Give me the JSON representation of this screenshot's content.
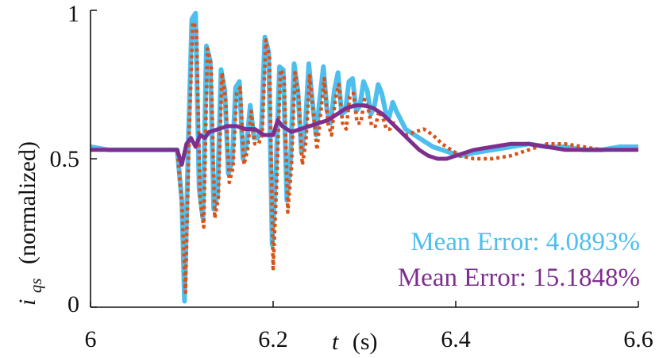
{
  "chart_data": {
    "type": "line",
    "title": "",
    "xlabel_var": "t",
    "xlabel_unit": "(s)",
    "ylabel_var": "i",
    "ylabel_sub": "qs",
    "ylabel_rest": "(normalized)",
    "xlim": [
      6.0,
      6.6
    ],
    "ylim": [
      0,
      1
    ],
    "x_ticks": [
      6.0,
      6.2,
      6.4,
      6.6
    ],
    "x_tick_labels": [
      "6",
      "6.2",
      "6.4",
      "6.6"
    ],
    "y_ticks": [
      0,
      0.5,
      1
    ],
    "y_tick_labels": [
      "0",
      "0.5",
      "1"
    ],
    "grid": false,
    "annotations": [
      {
        "text": "Mean Error:  4.0893%",
        "color": "#4dbeee"
      },
      {
        "text": "Mean Error:  15.1848%",
        "color": "#7e2f8e"
      }
    ],
    "series": [
      {
        "color": "#4dbeee",
        "style": "solid",
        "x": [
          6.0,
          6.02,
          6.04,
          6.06,
          6.08,
          6.095,
          6.1,
          6.103,
          6.107,
          6.111,
          6.115,
          6.119,
          6.123,
          6.127,
          6.131,
          6.135,
          6.139,
          6.143,
          6.147,
          6.151,
          6.155,
          6.159,
          6.163,
          6.167,
          6.171,
          6.175,
          6.179,
          6.183,
          6.187,
          6.191,
          6.195,
          6.199,
          6.203,
          6.207,
          6.211,
          6.215,
          6.219,
          6.223,
          6.227,
          6.231,
          6.235,
          6.239,
          6.243,
          6.247,
          6.251,
          6.255,
          6.259,
          6.263,
          6.267,
          6.271,
          6.275,
          6.279,
          6.283,
          6.287,
          6.291,
          6.295,
          6.299,
          6.303,
          6.307,
          6.311,
          6.315,
          6.319,
          6.323,
          6.327,
          6.331,
          6.335,
          6.345,
          6.355,
          6.365,
          6.375,
          6.385,
          6.395,
          6.405,
          6.42,
          6.44,
          6.46,
          6.48,
          6.5,
          6.52,
          6.54,
          6.56,
          6.58,
          6.6
        ],
        "y": [
          0.54,
          0.53,
          0.53,
          0.53,
          0.53,
          0.53,
          0.36,
          0.02,
          0.55,
          0.97,
          0.99,
          0.4,
          0.3,
          0.88,
          0.83,
          0.33,
          0.38,
          0.8,
          0.73,
          0.45,
          0.49,
          0.74,
          0.76,
          0.5,
          0.55,
          0.68,
          0.57,
          0.57,
          0.6,
          0.91,
          0.86,
          0.21,
          0.46,
          0.81,
          0.8,
          0.36,
          0.5,
          0.82,
          0.73,
          0.52,
          0.6,
          0.82,
          0.69,
          0.58,
          0.7,
          0.81,
          0.66,
          0.62,
          0.73,
          0.79,
          0.65,
          0.66,
          0.76,
          0.77,
          0.66,
          0.68,
          0.76,
          0.73,
          0.65,
          0.68,
          0.75,
          0.72,
          0.66,
          0.64,
          0.69,
          0.66,
          0.6,
          0.58,
          0.56,
          0.54,
          0.53,
          0.52,
          0.51,
          0.52,
          0.53,
          0.54,
          0.55,
          0.54,
          0.54,
          0.53,
          0.53,
          0.54,
          0.54
        ]
      },
      {
        "color": "#d95319",
        "style": "dotted",
        "x": [
          6.0,
          6.02,
          6.04,
          6.06,
          6.08,
          6.095,
          6.1,
          6.104,
          6.108,
          6.112,
          6.116,
          6.12,
          6.124,
          6.128,
          6.132,
          6.136,
          6.14,
          6.144,
          6.148,
          6.152,
          6.156,
          6.16,
          6.164,
          6.168,
          6.172,
          6.176,
          6.18,
          6.184,
          6.188,
          6.192,
          6.196,
          6.2,
          6.204,
          6.208,
          6.212,
          6.216,
          6.22,
          6.224,
          6.228,
          6.232,
          6.236,
          6.24,
          6.244,
          6.248,
          6.252,
          6.256,
          6.26,
          6.264,
          6.268,
          6.272,
          6.276,
          6.28,
          6.284,
          6.288,
          6.292,
          6.296,
          6.3,
          6.304,
          6.308,
          6.312,
          6.316,
          6.32,
          6.324,
          6.328,
          6.332,
          6.336,
          6.345,
          6.355,
          6.365,
          6.375,
          6.385,
          6.395,
          6.405,
          6.42,
          6.44,
          6.46,
          6.48,
          6.5,
          6.52,
          6.54,
          6.56,
          6.58,
          6.6
        ],
        "y": [
          0.53,
          0.53,
          0.53,
          0.53,
          0.53,
          0.53,
          0.35,
          0.05,
          0.58,
          0.96,
          0.94,
          0.36,
          0.27,
          0.87,
          0.82,
          0.3,
          0.37,
          0.79,
          0.7,
          0.42,
          0.47,
          0.72,
          0.74,
          0.48,
          0.53,
          0.66,
          0.55,
          0.55,
          0.58,
          0.9,
          0.84,
          0.13,
          0.43,
          0.8,
          0.78,
          0.32,
          0.47,
          0.79,
          0.71,
          0.48,
          0.56,
          0.78,
          0.66,
          0.53,
          0.65,
          0.77,
          0.62,
          0.58,
          0.7,
          0.75,
          0.62,
          0.6,
          0.71,
          0.72,
          0.62,
          0.62,
          0.7,
          0.67,
          0.61,
          0.61,
          0.66,
          0.64,
          0.6,
          0.6,
          0.62,
          0.6,
          0.58,
          0.59,
          0.6,
          0.58,
          0.55,
          0.53,
          0.51,
          0.5,
          0.5,
          0.51,
          0.53,
          0.55,
          0.55,
          0.54,
          0.53,
          0.53,
          0.53
        ]
      },
      {
        "color": "#7e2f8e",
        "style": "solid",
        "x": [
          6.0,
          6.05,
          6.095,
          6.1,
          6.105,
          6.11,
          6.115,
          6.12,
          6.125,
          6.13,
          6.14,
          6.15,
          6.16,
          6.17,
          6.18,
          6.19,
          6.195,
          6.2,
          6.205,
          6.21,
          6.22,
          6.23,
          6.24,
          6.25,
          6.26,
          6.27,
          6.28,
          6.29,
          6.3,
          6.31,
          6.32,
          6.33,
          6.34,
          6.35,
          6.36,
          6.37,
          6.38,
          6.39,
          6.4,
          6.41,
          6.42,
          6.44,
          6.46,
          6.47,
          6.48,
          6.5,
          6.52,
          6.54,
          6.56,
          6.58,
          6.6
        ],
        "y": [
          0.53,
          0.53,
          0.53,
          0.48,
          0.55,
          0.57,
          0.54,
          0.58,
          0.57,
          0.59,
          0.6,
          0.61,
          0.61,
          0.6,
          0.6,
          0.58,
          0.58,
          0.58,
          0.63,
          0.61,
          0.59,
          0.6,
          0.61,
          0.62,
          0.63,
          0.65,
          0.67,
          0.68,
          0.68,
          0.67,
          0.65,
          0.62,
          0.59,
          0.56,
          0.53,
          0.51,
          0.5,
          0.5,
          0.51,
          0.52,
          0.53,
          0.54,
          0.55,
          0.55,
          0.55,
          0.54,
          0.53,
          0.53,
          0.53,
          0.53,
          0.53
        ]
      }
    ]
  }
}
